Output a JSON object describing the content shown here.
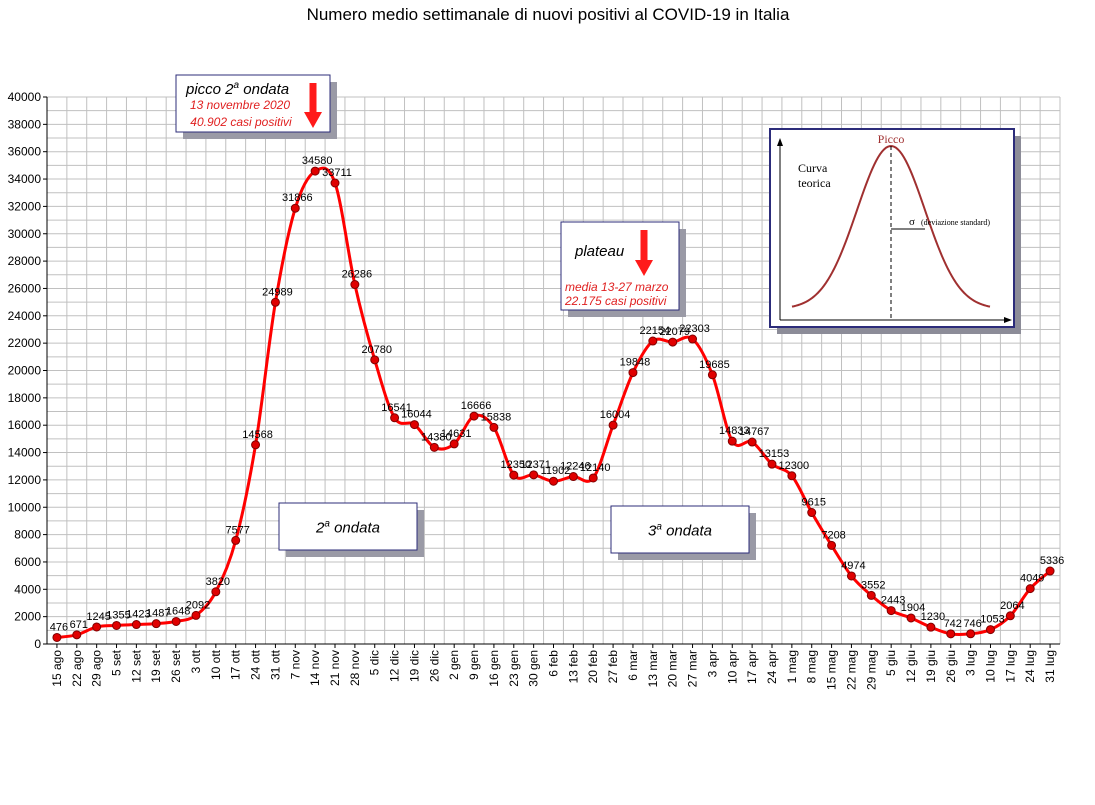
{
  "chart_data": {
    "type": "line",
    "title": "Numero medio settimanale di nuovi positivi al COVID-19 in Italia",
    "xlabel": "",
    "ylabel": "",
    "ylim": [
      0,
      40000
    ],
    "yticks": [
      0,
      2000,
      4000,
      6000,
      8000,
      10000,
      12000,
      14000,
      16000,
      18000,
      20000,
      22000,
      24000,
      26000,
      28000,
      30000,
      32000,
      34000,
      36000,
      38000,
      40000
    ],
    "grid": true,
    "categories": [
      "15 ago",
      "22 ago",
      "29 ago",
      "5 set",
      "12 set",
      "19 set",
      "26 set",
      "3 ott",
      "10 ott",
      "17 ott",
      "24 ott",
      "31 ott",
      "7 nov",
      "14 nov",
      "21 nov",
      "28 nov",
      "5 dic",
      "12 dic",
      "19 dic",
      "26 dic",
      "2 gen",
      "9 gen",
      "16 gen",
      "23 gen",
      "30 gen",
      "6 feb",
      "13 feb",
      "20 feb",
      "27 feb",
      "6 mar",
      "13 mar",
      "20 mar",
      "27 mar",
      "3 apr",
      "10 apr",
      "17 apr",
      "24 apr",
      "1 mag",
      "8 mag",
      "15 mag",
      "22 mag",
      "29 mag",
      "5 giu",
      "12 giu",
      "19 giu",
      "26 giu",
      "3 lug",
      "10 lug",
      "17 lug",
      "24 lug",
      "31 lug"
    ],
    "series": [
      {
        "name": "",
        "color": "#ff0000",
        "marker_color": "#e00000",
        "values": [
          476,
          671,
          1245,
          1355,
          1423,
          1487,
          1648,
          2092,
          3820,
          7577,
          14568,
          24989,
          31866,
          34580,
          33711,
          26286,
          20780,
          16541,
          16044,
          14380,
          14631,
          16666,
          15838,
          12350,
          12371,
          11902,
          12246,
          12140,
          16004,
          19848,
          22154,
          22079,
          22303,
          19685,
          14833,
          14767,
          13153,
          12300,
          9615,
          7208,
          4974,
          3552,
          2443,
          1904,
          1230,
          742,
          746,
          1053,
          2064,
          4049,
          5336
        ]
      }
    ],
    "annotations": {
      "peak": {
        "title_main": "picco 2",
        "title_sup": "a",
        "title_rest": " ondata",
        "date": "13 novembre 2020",
        "value_text": "40.902 casi positivi"
      },
      "plateau": {
        "title": "plateau",
        "line1": "media 13-27 marzo",
        "line2": "22.175 casi positivi"
      },
      "wave2": {
        "num": "2",
        "sup": "a",
        "rest": " ondata"
      },
      "wave3": {
        "num": "3",
        "sup": "a",
        "rest": " ondata"
      }
    },
    "inset": {
      "peak_label": "Picco",
      "curve_label_1": "Curva",
      "curve_label_2": "teorica",
      "sigma": "σ",
      "sigma_label": "(deviazione standard)"
    }
  }
}
